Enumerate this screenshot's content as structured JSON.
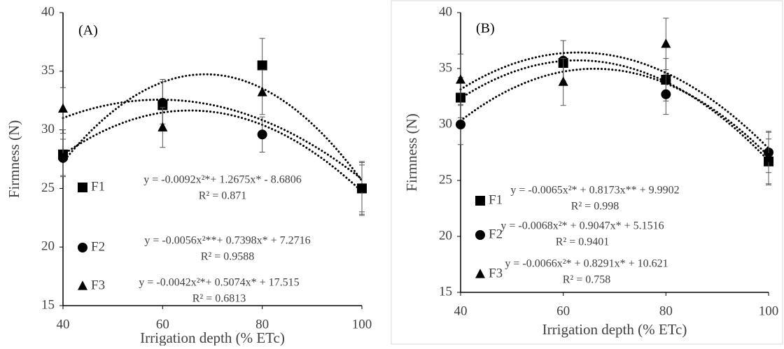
{
  "chart_data": [
    {
      "type": "scatter",
      "panel_label": "(A)",
      "x_label": "Irrigation depth (% ETc)",
      "y_label": "Firmness (N)",
      "x": [
        40,
        60,
        80,
        100
      ],
      "xlim": [
        40,
        100
      ],
      "xticks": [
        40,
        60,
        80,
        100
      ],
      "ylim": [
        15,
        40
      ],
      "yticks": [
        15,
        20,
        25,
        30,
        35,
        40
      ],
      "trendline": "polynomial-2",
      "color": "#000000",
      "series": [
        {
          "name": "F1",
          "marker": "square",
          "values": [
            27.9,
            32.1,
            35.5,
            25.0
          ],
          "errors": [
            1.8,
            2.2,
            2.3,
            2.2
          ],
          "equation": "y = -0.0092x²*+ 1.2675x* - 8.6806",
          "r2": "R² = 0.871"
        },
        {
          "name": "F2",
          "marker": "circle",
          "values": [
            27.6,
            32.3,
            29.6,
            25.0
          ],
          "errors": [
            1.6,
            1.8,
            1.5,
            2.0
          ],
          "equation": "y = -0.0056x²**+ 0.7398x* + 7.2716",
          "r2": "R² = 0.9588"
        },
        {
          "name": "F3",
          "marker": "triangle",
          "values": [
            31.8,
            30.2,
            33.2,
            25.0
          ],
          "errors": [
            1.8,
            1.7,
            1.9,
            2.3
          ],
          "equation": "y = -0.0042x²*+ 0.5074x* + 17.515",
          "r2": "R² = 0.6813"
        }
      ]
    },
    {
      "type": "scatter",
      "panel_label": "(B)",
      "x_label": "Irrigation depth (% ETc)",
      "y_label": "Firmness (N)",
      "x": [
        40,
        60,
        80,
        100
      ],
      "xlim": [
        40,
        100
      ],
      "xticks": [
        40,
        60,
        80,
        100
      ],
      "ylim": [
        15,
        40
      ],
      "yticks": [
        15,
        20,
        25,
        30,
        35,
        40
      ],
      "trendline": "polynomial-2",
      "color": "#000000",
      "series": [
        {
          "name": "F1",
          "marker": "square",
          "values": [
            32.4,
            35.5,
            34.0,
            26.7
          ],
          "errors": [
            1.8,
            2.0,
            1.9,
            2.0
          ],
          "equation": "y = -0.0065x²* + 0.8173x** + 9.9902",
          "r2": "R² = 0.998"
        },
        {
          "name": "F2",
          "marker": "circle",
          "values": [
            30.0,
            35.7,
            32.7,
            27.5
          ],
          "errors": [
            1.8,
            1.8,
            1.8,
            1.8
          ],
          "equation": "y = -0.0068x²* + 0.9047x* + 5.1516",
          "r2": "R² = 0.9401"
        },
        {
          "name": "F3",
          "marker": "triangle",
          "values": [
            34.0,
            33.8,
            37.2,
            27.0
          ],
          "errors": [
            2.3,
            2.1,
            2.3,
            2.4
          ],
          "equation": "y = -0.0066x²* + 0.8291x* + 10.621",
          "r2": "R² = 0.758"
        }
      ]
    }
  ]
}
